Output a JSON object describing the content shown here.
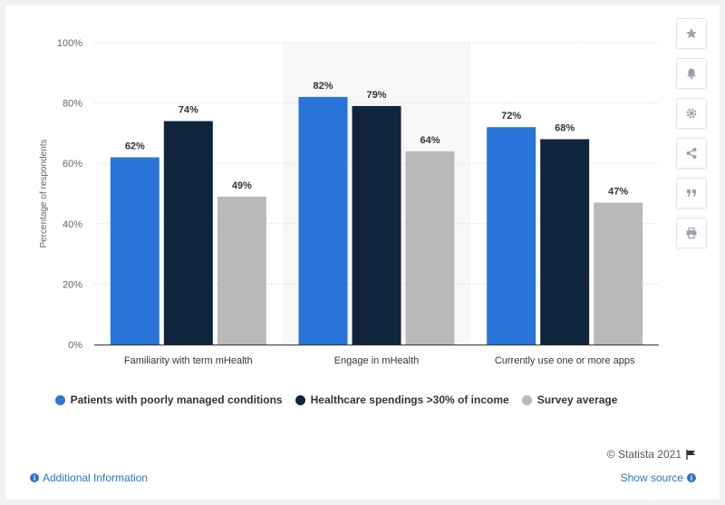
{
  "chart_data": {
    "type": "bar",
    "title": "",
    "xlabel": "",
    "ylabel": "Percentage of respondents",
    "ylim": [
      0,
      100
    ],
    "yticks": [
      "0%",
      "20%",
      "40%",
      "60%",
      "80%",
      "100%"
    ],
    "categories": [
      "Familiarity with term mHealth",
      "Engage in mHealth",
      "Currently use one or more apps"
    ],
    "series": [
      {
        "name": "Patients with poorly managed conditions",
        "values": [
          62,
          82,
          72
        ],
        "color": "#2a74d9"
      },
      {
        "name": "Healthcare spendings >30% of income",
        "values": [
          74,
          79,
          68
        ],
        "color": "#10253d"
      },
      {
        "name": "Survey average",
        "values": [
          49,
          64,
          47
        ],
        "color": "#b9b9b9"
      }
    ],
    "grid": true,
    "legend": "bottom",
    "highlighted_category_index": 1
  },
  "footer": {
    "credit": "© Statista 2021",
    "additional_info": "Additional Information",
    "show_source": "Show source"
  },
  "toolbar": {
    "icons": [
      "star-icon",
      "bell-icon",
      "gear-icon",
      "share-icon",
      "quote-icon",
      "print-icon"
    ]
  }
}
